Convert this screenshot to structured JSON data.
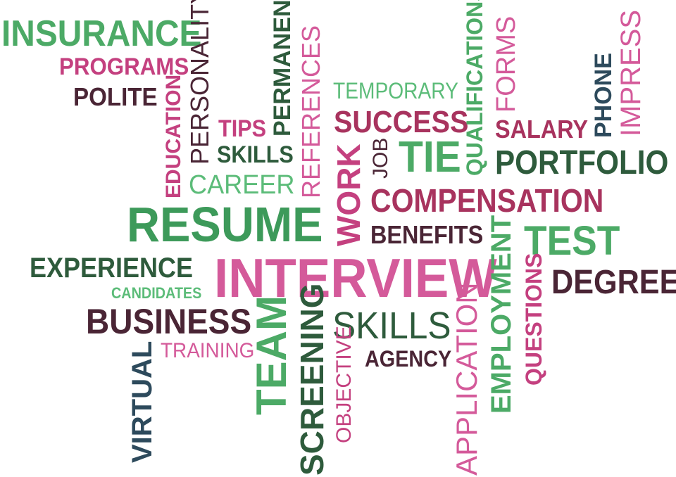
{
  "colors": {
    "light_green": "#4caa66",
    "dark_green": "#2e5b3c",
    "magenta": "#c4407f",
    "light_magenta": "#d45a9a",
    "maroon": "#4a2535",
    "navy": "#2d4a5c",
    "wine": "#a8335e",
    "mint": "#5cbc79",
    "background": "#ffffff"
  },
  "words": {
    "insurance": "INSURANCE",
    "programs": "PROGRAMS",
    "polite": "POLITE",
    "personality": "PERSONALITY",
    "education": "EDUCATION",
    "tips": "TIPS",
    "permanent": "PERMANENT",
    "skills_small": "SKILLS",
    "career": "CAREER",
    "references": "REFERENCES",
    "temporary": "TEMPORARY",
    "success": "SUCCESS",
    "qualifications": "QUALIFICATIONS",
    "forms": "FORMS",
    "impress": "IMPRESS",
    "phone": "PHONE",
    "salary": "SALARY",
    "work": "WORK",
    "job": "JOB",
    "tie": "TIE",
    "portfolio": "PORTFOLIO",
    "compensation": "COMPENSATION",
    "resume": "RESUME",
    "benefits": "BENEFITS",
    "employment": "EMPLOYMENT",
    "test": "TEST",
    "experience": "EXPERIENCE",
    "interview": "INTERVIEW",
    "questions": "QUESTIONS",
    "degree": "DEGREE",
    "candidates": "CANDIDATES",
    "business": "BUSINESS",
    "team": "TEAM",
    "screening": "SCREENING",
    "skills_large": "SKILLS",
    "training": "TRAINING",
    "virtual": "VIRTUAL",
    "objective": "OBJECTIVE",
    "agency": "AGENCY",
    "application": "APPLICATION"
  }
}
